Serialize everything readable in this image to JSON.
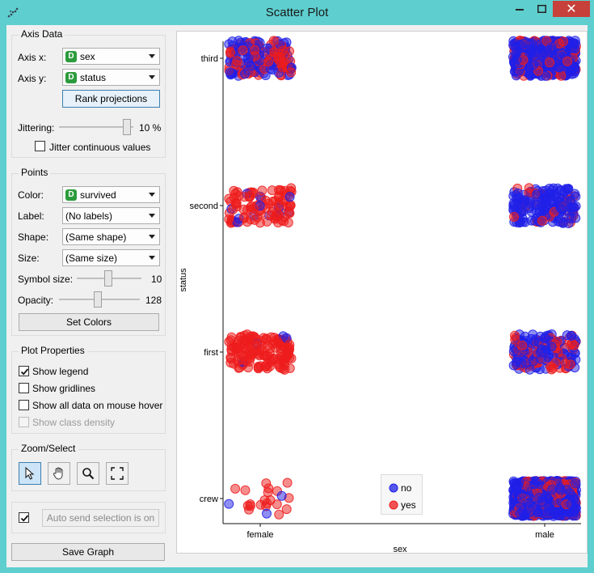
{
  "window": {
    "title": "Scatter Plot",
    "close_glyph": "✕",
    "minimize_glyph": "—",
    "maximize_glyph": "☐"
  },
  "axis_data": {
    "title": "Axis Data",
    "axis_x_label": "Axis x:",
    "axis_x_value": "sex",
    "axis_y_label": "Axis y:",
    "axis_y_value": "status",
    "var_badge": "D",
    "rank_button": "Rank projections",
    "jittering_label": "Jittering:",
    "jittering_value": "10 %",
    "jittering_level": 1.0,
    "jitter_continuous_label": "Jitter continuous values",
    "jitter_continuous_checked": false
  },
  "points": {
    "title": "Points",
    "color_label": "Color:",
    "color_value": "survived",
    "label_label": "Label:",
    "label_value": "(No labels)",
    "shape_label": "Shape:",
    "shape_value": "(Same shape)",
    "size_label": "Size:",
    "size_value": "(Same size)",
    "symbol_size_label": "Symbol size:",
    "symbol_size_value": "10",
    "symbol_size_level": 0.5,
    "opacity_label": "Opacity:",
    "opacity_value": "128",
    "opacity_level": 0.5,
    "set_colors_button": "Set Colors"
  },
  "plot_properties": {
    "title": "Plot Properties",
    "show_legend": "Show legend",
    "show_legend_checked": true,
    "show_gridlines": "Show gridlines",
    "show_gridlines_checked": false,
    "show_all_data": "Show all data on mouse hover",
    "show_all_data_checked": false,
    "show_class_density": "Show class density",
    "show_class_density_checked": false
  },
  "zoom_select": {
    "title": "Zoom/Select",
    "tools": [
      "pointer-icon",
      "hand-icon",
      "magnifier-icon",
      "fit-icon"
    ],
    "active_tool": "pointer-icon"
  },
  "auto_send": {
    "checked": true,
    "button": "Auto send selection is on"
  },
  "save_graph_button": "Save Graph",
  "colors": {
    "no": "#2020e8",
    "yes": "#ee1c1c",
    "accent": "#3c7fb1",
    "titlebar": "#5ecece"
  },
  "chart_data": {
    "type": "scatter",
    "xlabel": "sex",
    "ylabel": "status",
    "x_categories": [
      "female",
      "male"
    ],
    "y_categories": [
      "crew",
      "first",
      "second",
      "third"
    ],
    "jittered": true,
    "legend": {
      "placement": "bottom-center",
      "entries": [
        {
          "name": "no",
          "color": "#2020e8"
        },
        {
          "name": "yes",
          "color": "#ee1c1c"
        }
      ]
    },
    "grid": false,
    "groups": [
      {
        "x": "female",
        "y": "third",
        "no": 106,
        "yes": 90
      },
      {
        "x": "male",
        "y": "third",
        "no": 422,
        "yes": 88
      },
      {
        "x": "female",
        "y": "second",
        "no": 13,
        "yes": 93
      },
      {
        "x": "male",
        "y": "second",
        "no": 154,
        "yes": 25
      },
      {
        "x": "female",
        "y": "first",
        "no": 4,
        "yes": 141
      },
      {
        "x": "male",
        "y": "first",
        "no": 118,
        "yes": 62
      },
      {
        "x": "female",
        "y": "crew",
        "no": 3,
        "yes": 20
      },
      {
        "x": "male",
        "y": "crew",
        "no": 670,
        "yes": 192
      }
    ]
  }
}
